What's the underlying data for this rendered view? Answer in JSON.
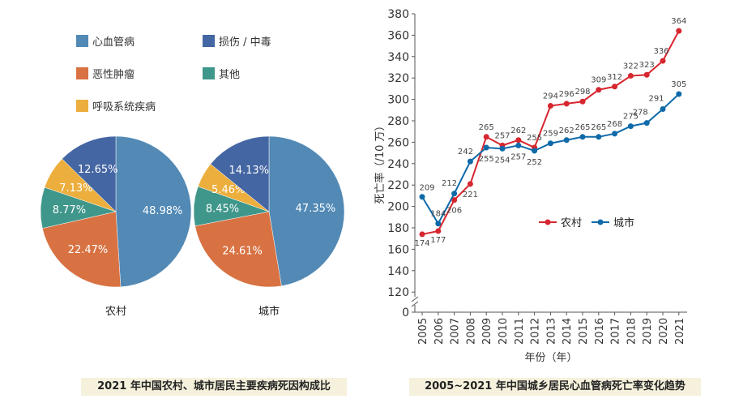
{
  "chart_data": [
    {
      "type": "pie",
      "title": "2021 年中国农村、城市居民主要疾病死因构成比",
      "legend": [
        {
          "name": "心血管病",
          "color": "#5289b5"
        },
        {
          "name": "损伤 / 中毒",
          "color": "#4466a3"
        },
        {
          "name": "恶性肿瘤",
          "color": "#d87243"
        },
        {
          "name": "其他",
          "color": "#3f968a"
        },
        {
          "name": "呼吸系统疾病",
          "color": "#ecae3c"
        }
      ],
      "pies": [
        {
          "label": "农村",
          "slices": [
            {
              "name": "心血管病",
              "value": 48.98,
              "text": "48.98%"
            },
            {
              "name": "恶性肿瘤",
              "value": 22.47,
              "text": "22.47%"
            },
            {
              "name": "其他",
              "value": 8.77,
              "text": "8.77%"
            },
            {
              "name": "呼吸系统疾病",
              "value": 7.13,
              "text": "7.13%"
            },
            {
              "name": "损伤 / 中毒",
              "value": 12.65,
              "text": "12.65%"
            }
          ]
        },
        {
          "label": "城市",
          "slices": [
            {
              "name": "心血管病",
              "value": 47.35,
              "text": "47.35%"
            },
            {
              "name": "恶性肿瘤",
              "value": 24.61,
              "text": "24.61%"
            },
            {
              "name": "其他",
              "value": 8.45,
              "text": "8.45%"
            },
            {
              "name": "呼吸系统疾病",
              "value": 5.46,
              "text": "5.46%"
            },
            {
              "name": "损伤 / 中毒",
              "value": 14.13,
              "text": "14.13%"
            }
          ]
        }
      ]
    },
    {
      "type": "line",
      "title": "2005~2021 年中国城乡居民心血管病死亡率变化趋势",
      "xlabel": "年份（年）",
      "ylabel": "死亡率（/10 万）",
      "x": [
        "2005",
        "2006",
        "2007",
        "2008",
        "2009",
        "2010",
        "2011",
        "2012",
        "2013",
        "2014",
        "2015",
        "2016",
        "2017",
        "2018",
        "2019",
        "2020",
        "2021"
      ],
      "yticks": [
        0,
        120,
        140,
        160,
        180,
        200,
        220,
        240,
        260,
        280,
        300,
        320,
        340,
        360,
        380
      ],
      "ylim": [
        120,
        380
      ],
      "axis_break": true,
      "series": [
        {
          "name": "农村",
          "color": "#d7262e",
          "values": [
            174,
            177,
            206,
            221,
            265,
            257,
            262,
            255,
            294,
            296,
            298,
            309,
            312,
            322,
            323,
            336,
            364
          ]
        },
        {
          "name": "城市",
          "color": "#0f6aa9",
          "values": [
            209,
            184,
            212,
            242,
            255,
            254,
            257,
            252,
            259,
            262,
            265,
            265,
            268,
            275,
            278,
            291,
            305
          ]
        }
      ],
      "legend_position": "center-right"
    }
  ]
}
